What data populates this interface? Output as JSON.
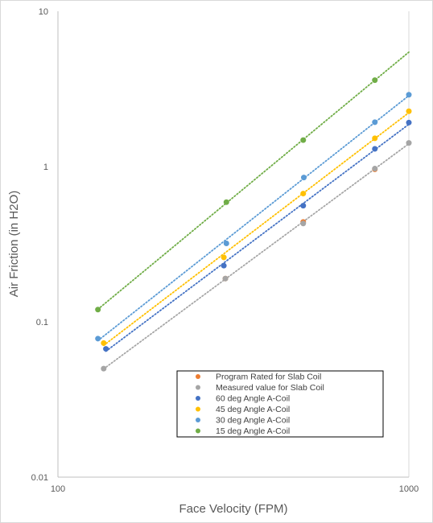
{
  "chart_data": {
    "type": "scatter",
    "title": "",
    "xlabel": "Face Velocity (FPM)",
    "ylabel": "Air Friction (in H2O)",
    "x_scale": "log",
    "y_scale": "log",
    "xlim": [
      100,
      1000
    ],
    "ylim": [
      0.01,
      10
    ],
    "x_ticks": [
      100,
      1000
    ],
    "x_tick_labels": [
      "100",
      "1000"
    ],
    "y_ticks": [
      0.01,
      0.1,
      1,
      10
    ],
    "y_tick_labels": [
      "0.01",
      "0.1",
      "1",
      "10"
    ],
    "grid": "vertical major gridlines",
    "legend_position": "lower-right",
    "trendlines": "dotted power-law fit per series",
    "series": [
      {
        "name": "Program Rated for Slab Coil",
        "color": "#ED7D31",
        "x": [
          300,
          500,
          800
        ],
        "y": [
          0.19,
          0.44,
          0.96
        ],
        "trendline": false
      },
      {
        "name": "Measured value for Slab Coil",
        "color": "#A5A5A5",
        "x": [
          135,
          300,
          500,
          800,
          1000
        ],
        "y": [
          0.05,
          0.19,
          0.43,
          0.97,
          1.42
        ],
        "trendline": true
      },
      {
        "name": "60 deg Angle A-Coil",
        "color": "#4472C4",
        "x": [
          137,
          297,
          500,
          800,
          1000
        ],
        "y": [
          0.067,
          0.23,
          0.56,
          1.3,
          1.92
        ],
        "trendline": true
      },
      {
        "name": "45 deg Angle A-Coil",
        "color": "#FFC000",
        "x": [
          135,
          297,
          500,
          800,
          1000
        ],
        "y": [
          0.073,
          0.26,
          0.67,
          1.52,
          2.27
        ],
        "trendline": true
      },
      {
        "name": "30 deg Angle A-Coil",
        "color": "#5B9BD5",
        "x": [
          130,
          302,
          502,
          800,
          1000
        ],
        "y": [
          0.078,
          0.32,
          0.85,
          1.93,
          2.9
        ],
        "trendline": true
      },
      {
        "name": "15 deg Angle A-Coil",
        "color": "#70AD47",
        "x": [
          130,
          302,
          500,
          800
        ],
        "y": [
          0.12,
          0.59,
          1.48,
          3.6
        ],
        "trendline": true
      }
    ]
  }
}
